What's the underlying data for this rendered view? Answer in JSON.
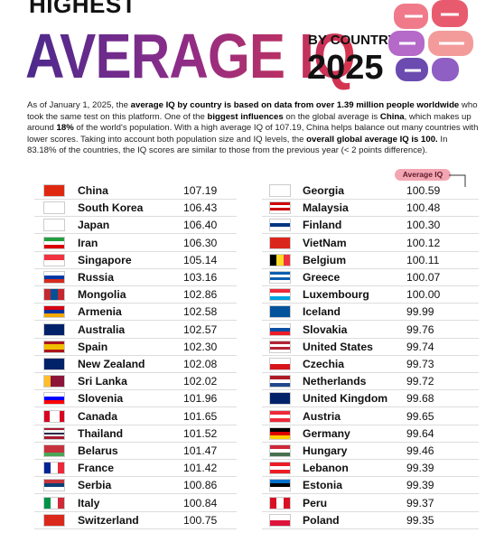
{
  "header": {
    "kicker": "HIGHEST",
    "title": "AVERAGE IQ",
    "subtitle": "BY COUNTRY",
    "year": "2025"
  },
  "intro": {
    "segments": [
      {
        "text": "As of January 1, 2025, the ",
        "bold": false
      },
      {
        "text": "average IQ by country is based on data from over 1.39 million people worldwide",
        "bold": true
      },
      {
        "text": " who took the same test on this platform. One of the ",
        "bold": false
      },
      {
        "text": "biggest influences",
        "bold": true
      },
      {
        "text": " on the global average is ",
        "bold": false
      },
      {
        "text": "China",
        "bold": true
      },
      {
        "text": ", which makes up around ",
        "bold": false
      },
      {
        "text": "18%",
        "bold": true
      },
      {
        "text": " of the world's population. With a high average IQ of 107.19, China helps balance out many countries with lower scores. Taking into account both population size and IQ levels, the ",
        "bold": false
      },
      {
        "text": "overall global average IQ is 100.",
        "bold": true
      },
      {
        "text": " In 83.18% of the countries, the IQ scores are similar to those from the previous year (< 2 points difference).",
        "bold": false
      }
    ]
  },
  "table": {
    "column_header": "Average IQ",
    "left": [
      [
        "China",
        "107.19"
      ],
      [
        "South Korea",
        "106.43"
      ],
      [
        "Japan",
        "106.40"
      ],
      [
        "Iran",
        "106.30"
      ],
      [
        "Singapore",
        "105.14"
      ],
      [
        "Russia",
        "103.16"
      ],
      [
        "Mongolia",
        "102.86"
      ],
      [
        "Armenia",
        "102.58"
      ],
      [
        "Australia",
        "102.57"
      ],
      [
        "Spain",
        "102.30"
      ],
      [
        "New Zealand",
        "102.08"
      ],
      [
        "Sri Lanka",
        "102.02"
      ],
      [
        "Slovenia",
        "101.96"
      ],
      [
        "Canada",
        "101.65"
      ],
      [
        "Thailand",
        "101.52"
      ],
      [
        "Belarus",
        "101.47"
      ],
      [
        "France",
        "101.42"
      ],
      [
        "Serbia",
        "100.86"
      ],
      [
        "Italy",
        "100.84"
      ],
      [
        "Switzerland",
        "100.75"
      ]
    ],
    "right": [
      [
        "Georgia",
        "100.59"
      ],
      [
        "Malaysia",
        "100.48"
      ],
      [
        "Finland",
        "100.30"
      ],
      [
        "VietNam",
        "100.12"
      ],
      [
        "Belgium",
        "100.11"
      ],
      [
        "Greece",
        "100.07"
      ],
      [
        "Luxembourg",
        "100.00"
      ],
      [
        "Iceland",
        "99.99"
      ],
      [
        "Slovakia",
        "99.76"
      ],
      [
        "United States",
        "99.74"
      ],
      [
        "Czechia",
        "99.73"
      ],
      [
        "Netherlands",
        "99.72"
      ],
      [
        "United Kingdom",
        "99.68"
      ],
      [
        "Austria",
        "99.65"
      ],
      [
        "Germany",
        "99.64"
      ],
      [
        "Hungary",
        "99.46"
      ],
      [
        "Lebanon",
        "99.39"
      ],
      [
        "Estonia",
        "99.39"
      ],
      [
        "Peru",
        "99.37"
      ],
      [
        "Poland",
        "99.35"
      ]
    ]
  }
}
